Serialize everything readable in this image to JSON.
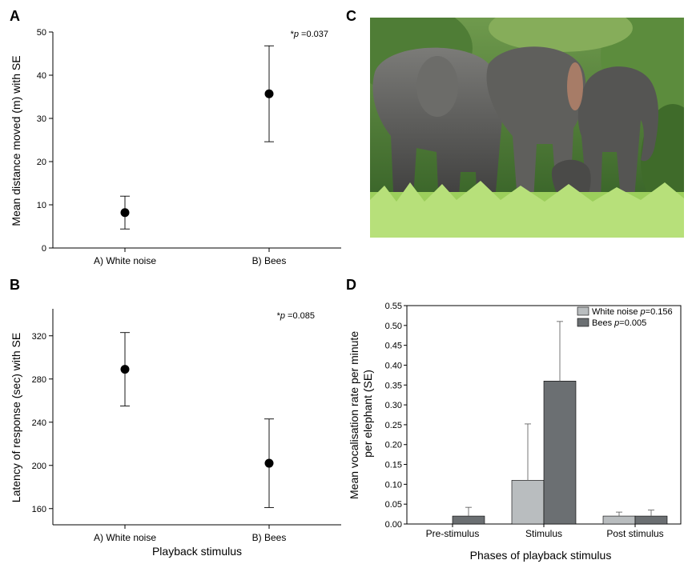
{
  "panels": {
    "A": "A",
    "B": "B",
    "C": "C",
    "D": "D"
  },
  "shared_xlabel": "Playback stimulus",
  "photo": {
    "sky_color": "#9fc07a",
    "foliage_color": "#3d6a2a",
    "elephant_color": "#5a5a5a",
    "grass_color": "#a8d96a"
  },
  "chart_data": [
    {
      "id": "A",
      "type": "scatter",
      "categories": [
        "A) White noise",
        "B) Bees"
      ],
      "values": [
        8.2,
        35.7
      ],
      "error_upper": [
        12.0,
        46.8
      ],
      "error_lower": [
        4.4,
        24.6
      ],
      "ylabel": "Mean distance moved (m) with SE",
      "xlabel": "",
      "ylim": [
        0,
        50
      ],
      "yticks": [
        0,
        10,
        20,
        30,
        40,
        50
      ],
      "annotation_star": "*",
      "annotation_p": "p",
      "annotation_value": " =0.037"
    },
    {
      "id": "B",
      "type": "scatter",
      "categories": [
        "A) White noise",
        "B) Bees"
      ],
      "values": [
        289,
        202
      ],
      "error_upper": [
        323,
        243
      ],
      "error_lower": [
        255,
        161
      ],
      "ylabel": "Latency of response (sec) with SE",
      "xlabel": "Playback stimulus",
      "ylim": [
        145,
        345
      ],
      "yticks": [
        160,
        200,
        240,
        280,
        320
      ],
      "annotation_star": "*",
      "annotation_p": "p",
      "annotation_value": " =0.085"
    },
    {
      "id": "D",
      "type": "bar",
      "categories": [
        "Pre-stimulus",
        "Stimulus",
        "Post stimulus"
      ],
      "series": [
        {
          "name": "White noise",
          "p_label": "p",
          "p_value": "=0.156",
          "color": "#b9bdbf",
          "values": [
            0,
            0.11,
            0.02
          ],
          "error_upper": [
            0,
            0.252,
            0.03
          ]
        },
        {
          "name": "Bees",
          "p_label": "p",
          "p_value": "=0.005",
          "color": "#6b6f72",
          "values": [
            0.02,
            0.36,
            0.02
          ],
          "error_upper": [
            0.042,
            0.51,
            0.035
          ]
        }
      ],
      "ylabel_line1": "Mean vocalisation rate per minute",
      "ylabel_line2": "per elephant (SE)",
      "xlabel": "Phases of playback stimulus",
      "ylim": [
        0,
        0.55
      ],
      "yticks": [
        "0.00",
        "0.05",
        "0.10",
        "0.15",
        "0.20",
        "0.25",
        "0.30",
        "0.35",
        "0.40",
        "0.45",
        "0.50",
        "0.55"
      ],
      "legend_position": "top-right"
    }
  ]
}
